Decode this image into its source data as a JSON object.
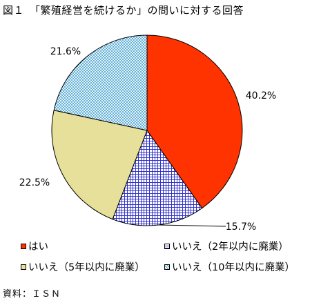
{
  "chart_data": {
    "type": "pie",
    "title": "図１　「繁殖経営を続けるか」の問いに対する回答",
    "slices": [
      {
        "name": "はい",
        "value": 40.2,
        "label": "40.2%",
        "color": "#ff3300",
        "pattern": "solid"
      },
      {
        "name": "いいえ（2年以内に廃業）",
        "value": 15.7,
        "label": "15.7%",
        "color": "#3333cc",
        "pattern": "grid"
      },
      {
        "name": "いいえ（5年以内に廃業）",
        "value": 22.5,
        "label": "22.5%",
        "color": "#e6e09a",
        "pattern": "solid"
      },
      {
        "name": "いいえ（10年以内に廃業）",
        "value": 21.6,
        "label": "21.6%",
        "color": "#3399cc",
        "pattern": "dots"
      }
    ],
    "legend_position": "bottom",
    "source": "資料：ＩＳＮ"
  }
}
